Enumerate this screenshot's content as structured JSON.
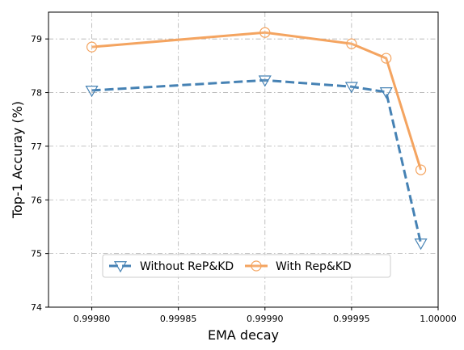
{
  "chart_data": {
    "type": "line",
    "title": "",
    "xlabel": "EMA decay",
    "ylabel": "Top-1 Accuray (%)",
    "xlim": [
      0.999775,
      1.0
    ],
    "ylim": [
      74,
      79.5
    ],
    "xticks": [
      0.9998,
      0.99985,
      0.9999,
      0.99995,
      1.0
    ],
    "xtick_labels": [
      "0.99980",
      "0.99985",
      "0.99990",
      "0.99995",
      "1.00000"
    ],
    "yticks": [
      74,
      75,
      76,
      77,
      78,
      79
    ],
    "ytick_labels": [
      "74",
      "75",
      "76",
      "77",
      "78",
      "79"
    ],
    "grid": true,
    "legend_position": "lower-center",
    "series": [
      {
        "name": "Without ReP&KD",
        "color": "#4682b4",
        "linestyle": "dashed",
        "marker": "triangle-down-open",
        "x": [
          0.9998,
          0.9999,
          0.99995,
          0.99997,
          0.99999
        ],
        "y": [
          78.04,
          78.23,
          78.11,
          78.01,
          75.19
        ]
      },
      {
        "name": "With Rep&KD",
        "color": "#f4a460",
        "linestyle": "solid",
        "marker": "circle-open",
        "x": [
          0.9998,
          0.9999,
          0.99995,
          0.99997,
          0.99999
        ],
        "y": [
          78.85,
          79.12,
          78.91,
          78.64,
          76.56
        ]
      }
    ]
  }
}
